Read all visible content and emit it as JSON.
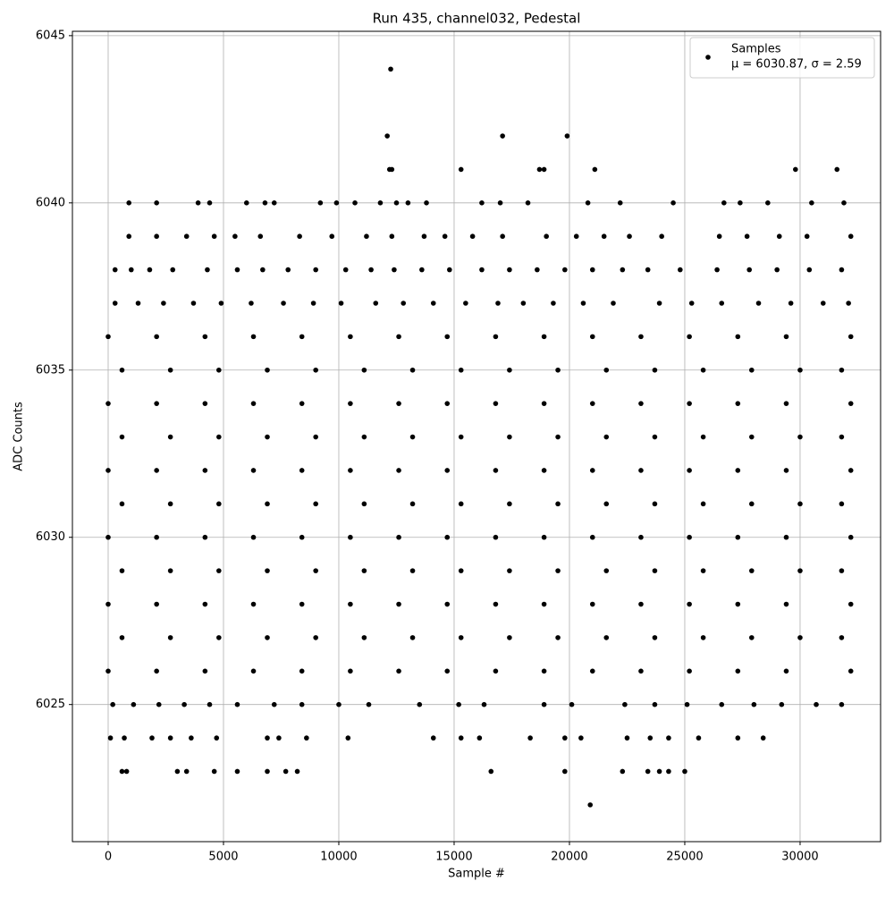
{
  "chart_data": {
    "type": "scatter",
    "title": "Run 435, channel032, Pedestal",
    "x_label": "Sample #",
    "y_label": "ADC Counts",
    "annotation": "μ = 6030.87, σ = 2.59",
    "xlim": [
      -1550,
      33490
    ],
    "ylim": [
      6020.9,
      6045.13
    ],
    "xticks": [
      0,
      5000,
      10000,
      15000,
      20000,
      25000,
      30000
    ],
    "yticks": [
      6025,
      6030,
      6035,
      6040,
      6045
    ],
    "grid": true,
    "legend": "upper right",
    "series": [
      {
        "name": "Samples",
        "color": "#000000",
        "x": [
          12250,
          12100,
          17100,
          19900,
          12200,
          12300,
          15300,
          18700,
          18900,
          21100,
          29800,
          31600,
          900,
          2100,
          3900,
          4400,
          6000,
          6800,
          7200,
          9200,
          9900,
          10700,
          11800,
          12500,
          13000,
          13800,
          16200,
          17000,
          18200,
          20800,
          22200,
          24500,
          26700,
          27400,
          28600,
          30500,
          31900,
          900,
          2100,
          3400,
          4600,
          5500,
          6600,
          8300,
          9700,
          11200,
          12300,
          13700,
          14600,
          15800,
          17100,
          19000,
          20300,
          21500,
          22600,
          24000,
          26500,
          27700,
          29100,
          30300,
          32200,
          300,
          1000,
          1800,
          2800,
          4300,
          5600,
          6700,
          7800,
          9000,
          10300,
          11400,
          12400,
          13600,
          14800,
          16200,
          17400,
          18600,
          19800,
          21000,
          22300,
          23400,
          24800,
          26400,
          27800,
          29000,
          30400,
          31800,
          300,
          1300,
          2400,
          3700,
          4900,
          6200,
          7600,
          8900,
          10100,
          11600,
          12800,
          14100,
          15500,
          16900,
          18000,
          19300,
          20600,
          21900,
          23900,
          25300,
          26600,
          28200,
          29600,
          31000,
          32100,
          0,
          2100,
          4200,
          6300,
          8400,
          10500,
          12600,
          14700,
          16800,
          18900,
          21000,
          23100,
          25200,
          27300,
          29400,
          32200,
          600,
          2700,
          4800,
          6900,
          9000,
          11100,
          13200,
          15300,
          17400,
          19500,
          21600,
          23700,
          25800,
          27900,
          30000,
          31800,
          0,
          2100,
          4200,
          6300,
          8400,
          10500,
          12600,
          14700,
          16800,
          18900,
          21000,
          23100,
          25200,
          27300,
          29400,
          32200,
          600,
          2700,
          4800,
          6900,
          9000,
          11100,
          13200,
          15300,
          17400,
          19500,
          21600,
          23700,
          25800,
          27900,
          30000,
          31800,
          0,
          2100,
          4200,
          6300,
          8400,
          10500,
          12600,
          14700,
          16800,
          18900,
          21000,
          23100,
          25200,
          27300,
          29400,
          32200,
          600,
          2700,
          4800,
          6900,
          9000,
          11100,
          13200,
          15300,
          17400,
          19500,
          21600,
          23700,
          25800,
          27900,
          30000,
          31800,
          0,
          2100,
          4200,
          6300,
          8400,
          10500,
          12600,
          14700,
          16800,
          18900,
          21000,
          23100,
          25200,
          27300,
          29400,
          32200,
          600,
          2700,
          4800,
          6900,
          9000,
          11100,
          13200,
          15300,
          17400,
          19500,
          21600,
          23700,
          25800,
          27900,
          30000,
          31800,
          0,
          2100,
          4200,
          6300,
          8400,
          10500,
          12600,
          14700,
          16800,
          18900,
          21000,
          23100,
          25200,
          27300,
          29400,
          32200,
          600,
          2700,
          4800,
          6900,
          9000,
          11100,
          13200,
          15300,
          17400,
          19500,
          21600,
          23700,
          25800,
          27900,
          30000,
          31800,
          0,
          2100,
          4200,
          6300,
          8400,
          10500,
          12600,
          14700,
          16800,
          18900,
          21000,
          23100,
          25200,
          27300,
          29400,
          32200,
          200,
          1100,
          2200,
          3300,
          4400,
          5600,
          7200,
          8400,
          10000,
          11300,
          13500,
          15200,
          16300,
          18900,
          20100,
          22400,
          23700,
          25100,
          26600,
          28000,
          29200,
          30700,
          31800,
          100,
          700,
          1900,
          2700,
          3600,
          4700,
          6900,
          7400,
          8600,
          10400,
          14100,
          15300,
          16100,
          18300,
          19800,
          20500,
          22500,
          23500,
          24300,
          25600,
          27300,
          28400,
          600,
          800,
          3000,
          3400,
          4600,
          5600,
          6900,
          7700,
          8200,
          16600,
          19800,
          22300,
          23400,
          23900,
          24300,
          25000,
          20900
        ],
        "values": [
          6044,
          6042,
          6042,
          6042,
          6041,
          6041,
          6041,
          6041,
          6041,
          6041,
          6041,
          6041,
          6040,
          6040,
          6040,
          6040,
          6040,
          6040,
          6040,
          6040,
          6040,
          6040,
          6040,
          6040,
          6040,
          6040,
          6040,
          6040,
          6040,
          6040,
          6040,
          6040,
          6040,
          6040,
          6040,
          6040,
          6040,
          6039,
          6039,
          6039,
          6039,
          6039,
          6039,
          6039,
          6039,
          6039,
          6039,
          6039,
          6039,
          6039,
          6039,
          6039,
          6039,
          6039,
          6039,
          6039,
          6039,
          6039,
          6039,
          6039,
          6039,
          6038,
          6038,
          6038,
          6038,
          6038,
          6038,
          6038,
          6038,
          6038,
          6038,
          6038,
          6038,
          6038,
          6038,
          6038,
          6038,
          6038,
          6038,
          6038,
          6038,
          6038,
          6038,
          6038,
          6038,
          6038,
          6038,
          6038,
          6037,
          6037,
          6037,
          6037,
          6037,
          6037,
          6037,
          6037,
          6037,
          6037,
          6037,
          6037,
          6037,
          6037,
          6037,
          6037,
          6037,
          6037,
          6037,
          6037,
          6037,
          6037,
          6037,
          6037,
          6037,
          6036,
          6036,
          6036,
          6036,
          6036,
          6036,
          6036,
          6036,
          6036,
          6036,
          6036,
          6036,
          6036,
          6036,
          6036,
          6036,
          6035,
          6035,
          6035,
          6035,
          6035,
          6035,
          6035,
          6035,
          6035,
          6035,
          6035,
          6035,
          6035,
          6035,
          6035,
          6035,
          6034,
          6034,
          6034,
          6034,
          6034,
          6034,
          6034,
          6034,
          6034,
          6034,
          6034,
          6034,
          6034,
          6034,
          6034,
          6034,
          6033,
          6033,
          6033,
          6033,
          6033,
          6033,
          6033,
          6033,
          6033,
          6033,
          6033,
          6033,
          6033,
          6033,
          6033,
          6033,
          6032,
          6032,
          6032,
          6032,
          6032,
          6032,
          6032,
          6032,
          6032,
          6032,
          6032,
          6032,
          6032,
          6032,
          6032,
          6032,
          6031,
          6031,
          6031,
          6031,
          6031,
          6031,
          6031,
          6031,
          6031,
          6031,
          6031,
          6031,
          6031,
          6031,
          6031,
          6031,
          6030,
          6030,
          6030,
          6030,
          6030,
          6030,
          6030,
          6030,
          6030,
          6030,
          6030,
          6030,
          6030,
          6030,
          6030,
          6030,
          6029,
          6029,
          6029,
          6029,
          6029,
          6029,
          6029,
          6029,
          6029,
          6029,
          6029,
          6029,
          6029,
          6029,
          6029,
          6029,
          6028,
          6028,
          6028,
          6028,
          6028,
          6028,
          6028,
          6028,
          6028,
          6028,
          6028,
          6028,
          6028,
          6028,
          6028,
          6028,
          6027,
          6027,
          6027,
          6027,
          6027,
          6027,
          6027,
          6027,
          6027,
          6027,
          6027,
          6027,
          6027,
          6027,
          6027,
          6027,
          6026,
          6026,
          6026,
          6026,
          6026,
          6026,
          6026,
          6026,
          6026,
          6026,
          6026,
          6026,
          6026,
          6026,
          6026,
          6026,
          6025,
          6025,
          6025,
          6025,
          6025,
          6025,
          6025,
          6025,
          6025,
          6025,
          6025,
          6025,
          6025,
          6025,
          6025,
          6025,
          6025,
          6025,
          6025,
          6025,
          6025,
          6025,
          6025,
          6024,
          6024,
          6024,
          6024,
          6024,
          6024,
          6024,
          6024,
          6024,
          6024,
          6024,
          6024,
          6024,
          6024,
          6024,
          6024,
          6024,
          6024,
          6024,
          6024,
          6024,
          6024,
          6023,
          6023,
          6023,
          6023,
          6023,
          6023,
          6023,
          6023,
          6023,
          6023,
          6023,
          6023,
          6023,
          6023,
          6023,
          6023,
          6022
        ]
      }
    ]
  }
}
